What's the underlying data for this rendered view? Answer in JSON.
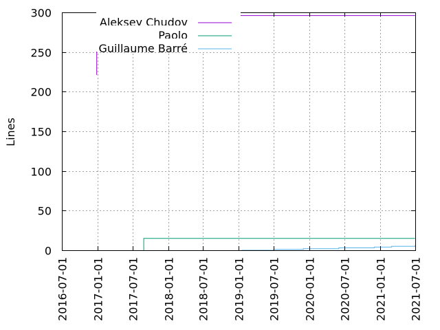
{
  "chart_data": {
    "type": "line",
    "ylabel": "Lines",
    "xlabel": "",
    "ylim": [
      0,
      300
    ],
    "xlim": [
      "2016-07-01",
      "2021-07-01"
    ],
    "y_ticks": [
      "0",
      "50",
      "100",
      "150",
      "200",
      "250",
      "300"
    ],
    "x_ticks": [
      "2016-07-01",
      "2017-01-01",
      "2017-07-01",
      "2018-01-01",
      "2018-07-01",
      "2019-01-01",
      "2019-07-01",
      "2020-01-01",
      "2020-07-01",
      "2021-01-01",
      "2021-07-01"
    ],
    "grid": true,
    "legend_position": "top-left",
    "series": [
      {
        "name": "Aleksey Chudov",
        "color": "#9400d3",
        "points": [
          [
            "2016-12-28",
            221
          ],
          [
            "2016-12-28",
            259
          ],
          [
            "2017-01-10",
            262
          ],
          [
            "2017-07-15",
            287
          ],
          [
            "2017-08-01",
            290
          ],
          [
            "2017-09-01",
            294
          ],
          [
            "2018-05-01",
            295
          ],
          [
            "2018-06-15",
            296
          ],
          [
            "2021-06-30",
            296
          ]
        ]
      },
      {
        "name": "Paolo",
        "color": "#009e73",
        "points": [
          [
            "2017-08-28",
            0
          ],
          [
            "2017-08-28",
            15
          ],
          [
            "2021-06-30",
            15
          ]
        ]
      },
      {
        "name": "Guillaume Barré",
        "color": "#56b4e9",
        "points": [
          [
            "2019-01-15",
            0
          ],
          [
            "2019-07-01",
            1
          ],
          [
            "2019-12-01",
            2
          ],
          [
            "2020-06-01",
            3
          ],
          [
            "2020-12-01",
            4
          ],
          [
            "2021-03-01",
            5
          ],
          [
            "2021-06-30",
            6
          ]
        ]
      }
    ]
  }
}
